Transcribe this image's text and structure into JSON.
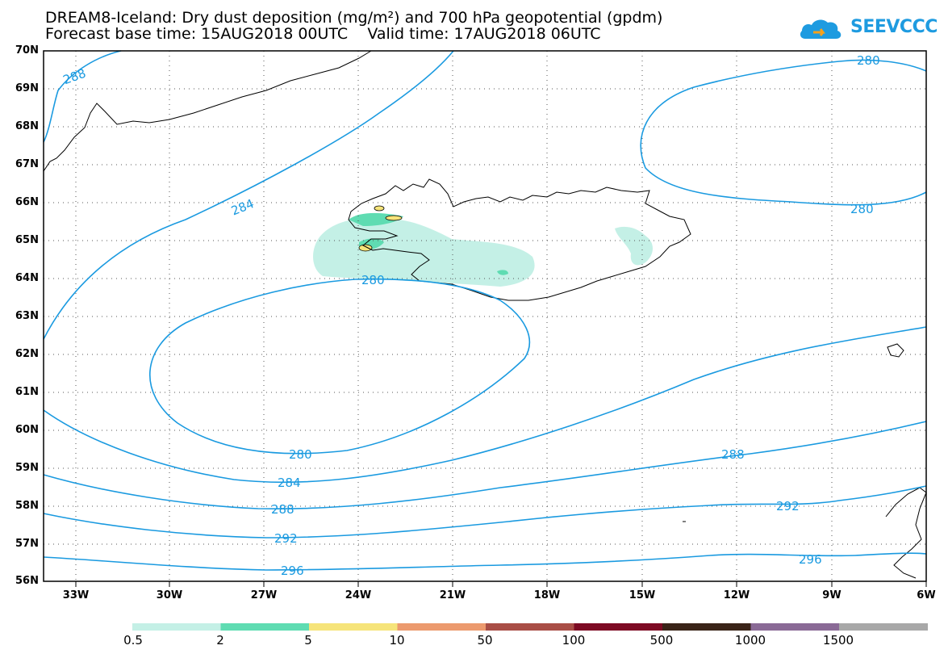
{
  "title_line1": "DREAM8-Iceland: Dry dust deposition (mg/m²) and 700 hPa geopotential (gpdm)",
  "title_line2": "Forecast base time: 15AUG2018 00UTC    Valid time: 17AUG2018 06UTC",
  "logo_text": "SEEVCCC",
  "lat_labels": [
    "70N",
    "69N",
    "68N",
    "67N",
    "66N",
    "65N",
    "64N",
    "63N",
    "62N",
    "61N",
    "60N",
    "59N",
    "58N",
    "57N",
    "56N"
  ],
  "lon_labels": [
    "33W",
    "30W",
    "27W",
    "24W",
    "21W",
    "18W",
    "15W",
    "12W",
    "9W",
    "6W"
  ],
  "contour_labels": [
    "288",
    "284",
    "280",
    "280",
    "280",
    "280",
    "284",
    "288",
    "288",
    "292",
    "292",
    "296",
    "296"
  ],
  "colorbar": {
    "labels": [
      "0.5",
      "2",
      "5",
      "10",
      "50",
      "100",
      "500",
      "1000",
      "1500"
    ],
    "colors": [
      "#c4f0e6",
      "#5fdcb2",
      "#f6e47a",
      "#ec9a6e",
      "#a94e46",
      "#7d0a23",
      "#3a2318",
      "#8a6a96",
      "#a8a8a8"
    ]
  },
  "colors": {
    "contour": "#1a9ae0",
    "coast": "#000000",
    "grid": "#555555"
  }
}
